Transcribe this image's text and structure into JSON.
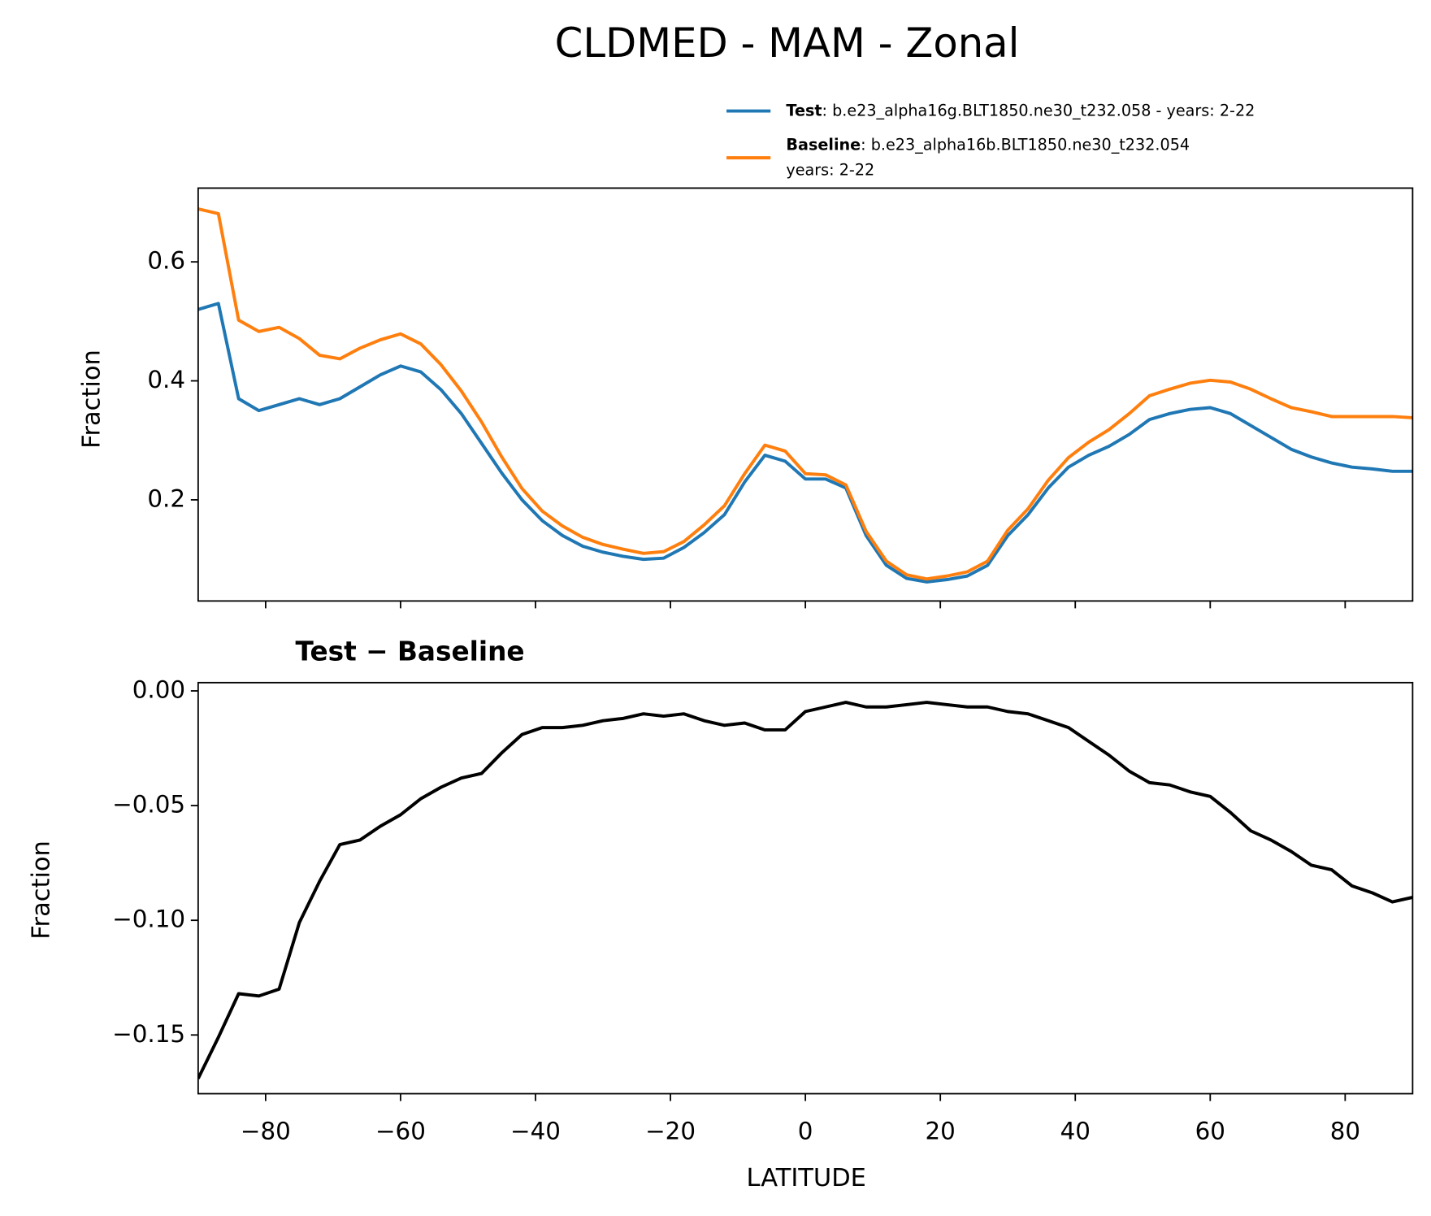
{
  "chart_data": [
    {
      "type": "line",
      "title": "CLDMED - MAM - Zonal",
      "ylabel": "Fraction",
      "x": [
        -90,
        -87,
        -84,
        -81,
        -78,
        -75,
        -72,
        -69,
        -66,
        -63,
        -60,
        -57,
        -54,
        -51,
        -48,
        -45,
        -42,
        -39,
        -36,
        -33,
        -30,
        -27,
        -24,
        -21,
        -18,
        -15,
        -12,
        -9,
        -6,
        -3,
        0,
        3,
        6,
        9,
        12,
        15,
        18,
        21,
        24,
        27,
        30,
        33,
        36,
        39,
        42,
        45,
        48,
        51,
        54,
        57,
        60,
        63,
        66,
        69,
        72,
        75,
        78,
        81,
        84,
        87,
        90
      ],
      "series": [
        {
          "name": "Test",
          "legend_detail": [
            ": b.e23_alpha16g.BLT1850.ne30_t232.058 - years: 2-22"
          ],
          "color": "#1f77b4",
          "values": [
            0.52,
            0.53,
            0.37,
            0.35,
            0.36,
            0.37,
            0.36,
            0.37,
            0.39,
            0.41,
            0.425,
            0.415,
            0.385,
            0.345,
            0.295,
            0.245,
            0.2,
            0.165,
            0.14,
            0.122,
            0.112,
            0.105,
            0.1,
            0.102,
            0.12,
            0.145,
            0.175,
            0.23,
            0.275,
            0.265,
            0.235,
            0.235,
            0.22,
            0.14,
            0.09,
            0.068,
            0.062,
            0.066,
            0.072,
            0.09,
            0.14,
            0.175,
            0.22,
            0.255,
            0.275,
            0.29,
            0.31,
            0.335,
            0.345,
            0.352,
            0.355,
            0.345,
            0.325,
            0.305,
            0.285,
            0.272,
            0.262,
            0.255,
            0.252,
            0.248,
            0.248
          ]
        },
        {
          "name": "Baseline",
          "legend_detail": [
            ": b.e23_alpha16b.BLT1850.ne30_t232.054",
            "years: 2-22"
          ],
          "color": "#ff7f0e",
          "values": [
            0.689,
            0.681,
            0.502,
            0.483,
            0.49,
            0.471,
            0.443,
            0.437,
            0.455,
            0.469,
            0.479,
            0.462,
            0.427,
            0.383,
            0.331,
            0.272,
            0.219,
            0.181,
            0.156,
            0.137,
            0.125,
            0.117,
            0.11,
            0.113,
            0.13,
            0.158,
            0.19,
            0.244,
            0.292,
            0.282,
            0.244,
            0.242,
            0.225,
            0.147,
            0.097,
            0.074,
            0.067,
            0.072,
            0.079,
            0.097,
            0.149,
            0.185,
            0.233,
            0.271,
            0.297,
            0.318,
            0.345,
            0.375,
            0.386,
            0.396,
            0.401,
            0.398,
            0.386,
            0.37,
            0.355,
            0.348,
            0.34,
            0.34,
            0.34,
            0.34,
            0.338
          ]
        }
      ],
      "xlim": [
        -90,
        90
      ],
      "xticks": [
        -80,
        -60,
        -40,
        -20,
        0,
        20,
        40,
        60,
        80
      ],
      "ylim": [
        0.03,
        0.724
      ],
      "yticks": [
        0.2,
        0.4,
        0.6
      ],
      "legend": "upper right outside"
    },
    {
      "type": "line",
      "title": "Test − Baseline",
      "xlabel": "LATITUDE",
      "ylabel": "Fraction",
      "x": [
        -90,
        -87,
        -84,
        -81,
        -78,
        -75,
        -72,
        -69,
        -66,
        -63,
        -60,
        -57,
        -54,
        -51,
        -48,
        -45,
        -42,
        -39,
        -36,
        -33,
        -30,
        -27,
        -24,
        -21,
        -18,
        -15,
        -12,
        -9,
        -6,
        -3,
        0,
        3,
        6,
        9,
        12,
        15,
        18,
        21,
        24,
        27,
        30,
        33,
        36,
        39,
        42,
        45,
        48,
        51,
        54,
        57,
        60,
        63,
        66,
        69,
        72,
        75,
        78,
        81,
        84,
        87,
        90
      ],
      "color": "#000000",
      "values": [
        -0.169,
        -0.151,
        -0.132,
        -0.133,
        -0.13,
        -0.101,
        -0.083,
        -0.067,
        -0.065,
        -0.059,
        -0.054,
        -0.047,
        -0.042,
        -0.038,
        -0.036,
        -0.027,
        -0.019,
        -0.016,
        -0.016,
        -0.015,
        -0.013,
        -0.012,
        -0.01,
        -0.011,
        -0.01,
        -0.013,
        -0.015,
        -0.014,
        -0.017,
        -0.017,
        -0.009,
        -0.007,
        -0.005,
        -0.007,
        -0.007,
        -0.006,
        -0.005,
        -0.006,
        -0.007,
        -0.007,
        -0.009,
        -0.01,
        -0.013,
        -0.016,
        -0.022,
        -0.028,
        -0.035,
        -0.04,
        -0.041,
        -0.044,
        -0.046,
        -0.053,
        -0.061,
        -0.065,
        -0.07,
        -0.076,
        -0.078,
        -0.085,
        -0.088,
        -0.092,
        -0.09
      ],
      "xlim": [
        -90,
        90
      ],
      "xticks": [
        {
          "value": -80,
          "label": "−80"
        },
        {
          "value": -60,
          "label": "−60"
        },
        {
          "value": -40,
          "label": "−40"
        },
        {
          "value": -20,
          "label": "−20"
        },
        0,
        20,
        40,
        60,
        80
      ],
      "ylim": [
        -0.1756,
        0.0036
      ],
      "yticks": [
        {
          "value": 0,
          "label": "0.00"
        },
        {
          "value": -0.05,
          "label": "−0.05"
        },
        {
          "value": -0.1,
          "label": "−0.10"
        },
        {
          "value": -0.15,
          "label": "−0.15"
        }
      ]
    }
  ]
}
